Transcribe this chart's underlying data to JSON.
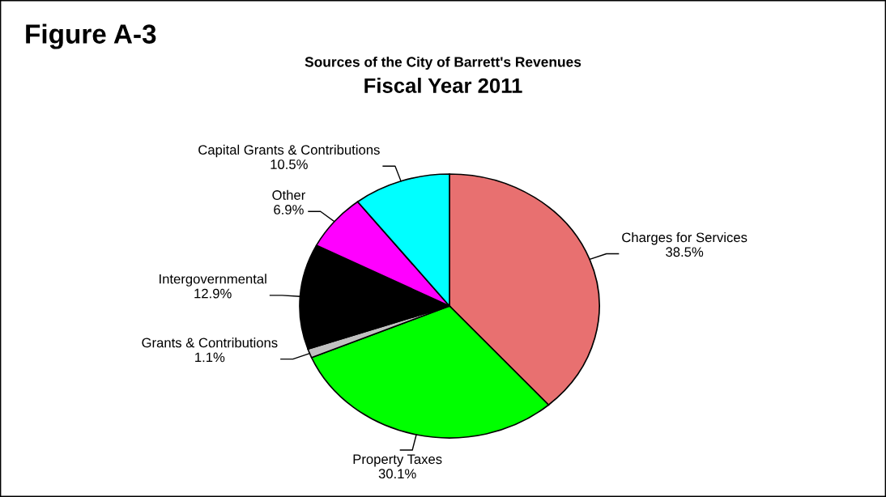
{
  "chart_data": {
    "type": "pie",
    "title": "Sources of the City of Barrett's Revenues",
    "subtitle": "Fiscal Year 2011",
    "annotations": [
      "Figure A-3"
    ],
    "categories": [
      "Charges for Services",
      "Property Taxes",
      "Grants & Contributions",
      "Intergovernmental",
      "Other",
      "Capital Grants & Contributions"
    ],
    "values": [
      38.5,
      30.1,
      1.1,
      12.9,
      6.9,
      10.5
    ],
    "value_labels": [
      "38.5%",
      "30.1%",
      "1.1%",
      "12.9%",
      "6.9%",
      "10.5%"
    ],
    "colors": [
      "#e87070",
      "#00ff00",
      "#c0c0c0",
      "#000000",
      "#ff00ff",
      "#00ffff"
    ],
    "legend": false
  }
}
